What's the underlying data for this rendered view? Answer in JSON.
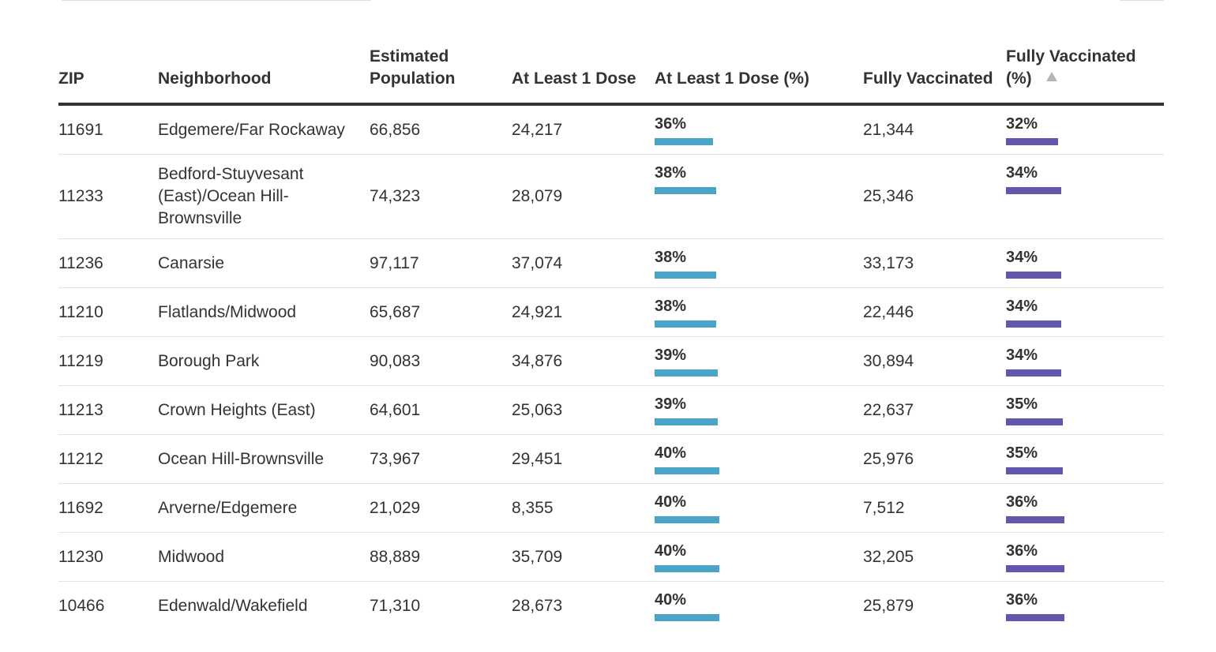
{
  "columns": [
    {
      "key": "zip",
      "label": "ZIP",
      "sorted": false
    },
    {
      "key": "neighborhood",
      "label": "Neighborhood",
      "sorted": false
    },
    {
      "key": "population",
      "label": "Estimated Population",
      "sorted": false
    },
    {
      "key": "dose1",
      "label": "At Least 1 Dose",
      "sorted": false
    },
    {
      "key": "dose1_pct",
      "label": "At Least 1 Dose (%)",
      "sorted": false
    },
    {
      "key": "full",
      "label": "Fully Vaccinated",
      "sorted": false
    },
    {
      "key": "full_pct",
      "label": "Fully Vaccinated (%)",
      "sorted": true,
      "sort_direction": "ascending",
      "sort_icon": "triangle-up-icon"
    }
  ],
  "bar_colors": {
    "dose1_pct": "#4aa4c8",
    "full_pct": "#6157ab"
  },
  "rows": [
    {
      "zip": "11691",
      "neighborhood": "Edgemere/Far Rockaway",
      "population": "66,856",
      "dose1": "24,217",
      "dose1_pct": "36%",
      "full": "21,344",
      "full_pct": "32%"
    },
    {
      "zip": "11233",
      "neighborhood": "Bedford-Stuyvesant (East)/Ocean Hill-Brownsville",
      "population": "74,323",
      "dose1": "28,079",
      "dose1_pct": "38%",
      "full": "25,346",
      "full_pct": "34%"
    },
    {
      "zip": "11236",
      "neighborhood": "Canarsie",
      "population": "97,117",
      "dose1": "37,074",
      "dose1_pct": "38%",
      "full": "33,173",
      "full_pct": "34%"
    },
    {
      "zip": "11210",
      "neighborhood": "Flatlands/Midwood",
      "population": "65,687",
      "dose1": "24,921",
      "dose1_pct": "38%",
      "full": "22,446",
      "full_pct": "34%"
    },
    {
      "zip": "11219",
      "neighborhood": "Borough Park",
      "population": "90,083",
      "dose1": "34,876",
      "dose1_pct": "39%",
      "full": "30,894",
      "full_pct": "34%"
    },
    {
      "zip": "11213",
      "neighborhood": "Crown Heights (East)",
      "population": "64,601",
      "dose1": "25,063",
      "dose1_pct": "39%",
      "full": "22,637",
      "full_pct": "35%"
    },
    {
      "zip": "11212",
      "neighborhood": "Ocean Hill-Brownsville",
      "population": "73,967",
      "dose1": "29,451",
      "dose1_pct": "40%",
      "full": "25,976",
      "full_pct": "35%"
    },
    {
      "zip": "11692",
      "neighborhood": "Arverne/Edgemere",
      "population": "21,029",
      "dose1": "8,355",
      "dose1_pct": "40%",
      "full": "7,512",
      "full_pct": "36%"
    },
    {
      "zip": "11230",
      "neighborhood": "Midwood",
      "population": "88,889",
      "dose1": "35,709",
      "dose1_pct": "40%",
      "full": "32,205",
      "full_pct": "36%"
    },
    {
      "zip": "10466",
      "neighborhood": "Edenwald/Wakefield",
      "population": "71,310",
      "dose1": "28,673",
      "dose1_pct": "40%",
      "full": "25,879",
      "full_pct": "36%"
    }
  ]
}
